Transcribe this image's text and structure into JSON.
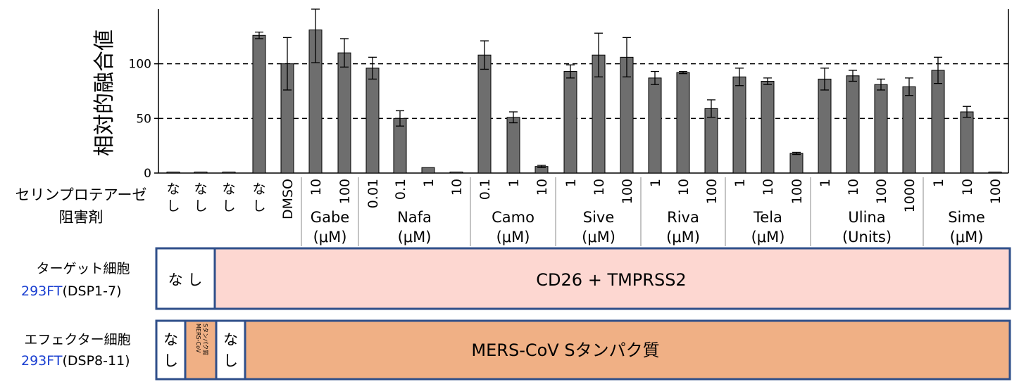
{
  "chart_data": {
    "type": "bar",
    "ylabel": "相対的融合値",
    "ylim": [
      0,
      150
    ],
    "yticks": [
      0,
      50,
      100
    ],
    "reference_lines": [
      50,
      100
    ],
    "categories": [
      "なし",
      "なし",
      "なし",
      "なし",
      "DMSO",
      "10",
      "100",
      "0.01",
      "0.1",
      "1",
      "10",
      "0.1",
      "1",
      "10",
      "1",
      "10",
      "100",
      "1",
      "10",
      "100",
      "1",
      "10",
      "100",
      "1",
      "10",
      "100",
      "1000",
      "1",
      "10",
      "100"
    ],
    "values": [
      0,
      0,
      0,
      126,
      100,
      131,
      110,
      96,
      50,
      5,
      0,
      108,
      51,
      6,
      93,
      108,
      106,
      87,
      92,
      59,
      88,
      84,
      18,
      86,
      89,
      81,
      79,
      94,
      56,
      0
    ],
    "errors": [
      0,
      0,
      0,
      3,
      24,
      30,
      13,
      10,
      7,
      0,
      0,
      13,
      5,
      1,
      6,
      20,
      18,
      6,
      1,
      8,
      8,
      3,
      1,
      10,
      5,
      5,
      8,
      12,
      5,
      0
    ],
    "x_row_label": [
      "セリンプロテアーゼ",
      "阻害剤"
    ],
    "groups": [
      {
        "name": "Gabe",
        "unit": "(μM)"
      },
      {
        "name": "Nafa",
        "unit": "(μM)"
      },
      {
        "name": "Camo",
        "unit": "(μM)"
      },
      {
        "name": "Sive",
        "unit": "(μM)"
      },
      {
        "name": "Riva",
        "unit": "(μM)"
      },
      {
        "name": "Tela",
        "unit": "(μM)"
      },
      {
        "name": "Ulina",
        "unit": "(Units)"
      },
      {
        "name": "Sime",
        "unit": "(μM)"
      }
    ],
    "colors": {
      "bar": "#6e6e6e",
      "target_box": "#fdd7d1",
      "effector_box": "#f0b085",
      "border": "#2f4f8a",
      "cell_line": "#1a3fd1"
    }
  },
  "target_row": {
    "label": "ターゲット細胞",
    "cell_line": "293FT",
    "plasmid": "(DSP1-7)",
    "none_label": "な し",
    "content": "CD26 + TMPRSS2"
  },
  "effector_row": {
    "label": "エフェクター細胞",
    "cell_line": "293FT",
    "plasmid": "(DSP8-11)",
    "none_label": "な し",
    "small_label_1": "MERS-CoV",
    "small_label_2": "Sタンパク質",
    "content": "MERS-CoV Sタンパク質"
  }
}
